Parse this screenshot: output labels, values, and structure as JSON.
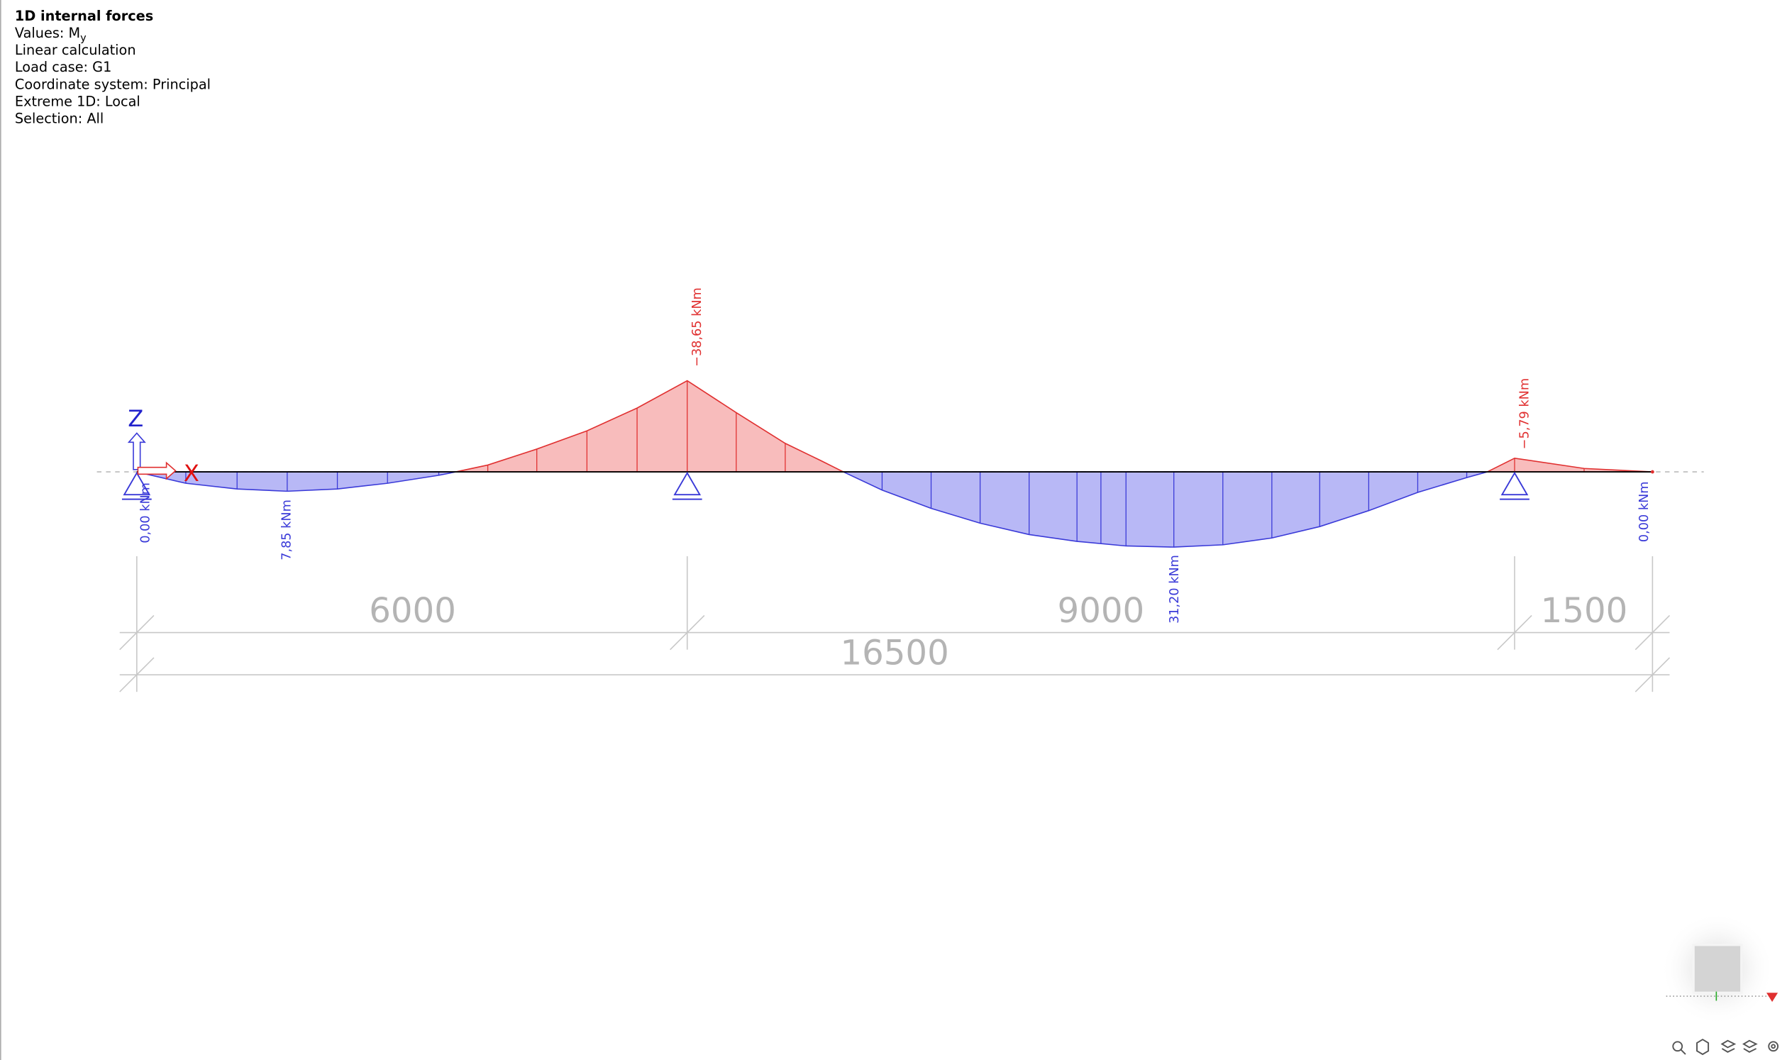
{
  "header": {
    "title": "1D internal forces",
    "values_label": "Values: M",
    "values_subscript": "y",
    "lines": [
      "Linear calculation",
      "Load case: G1",
      "Coordinate system: Principal",
      "Extreme 1D: Local",
      "Selection: All"
    ]
  },
  "axes": {
    "z": "Z",
    "x": "X"
  },
  "moment_labels": [
    "0,00 kNm",
    "7,85 kNm",
    "−38,65 kNm",
    "31,20 kNm",
    "−5,79 kNm",
    "0,00 kNm"
  ],
  "dimensions": {
    "spans": [
      "6000",
      "9000",
      "1500"
    ],
    "total": "16500"
  }
}
